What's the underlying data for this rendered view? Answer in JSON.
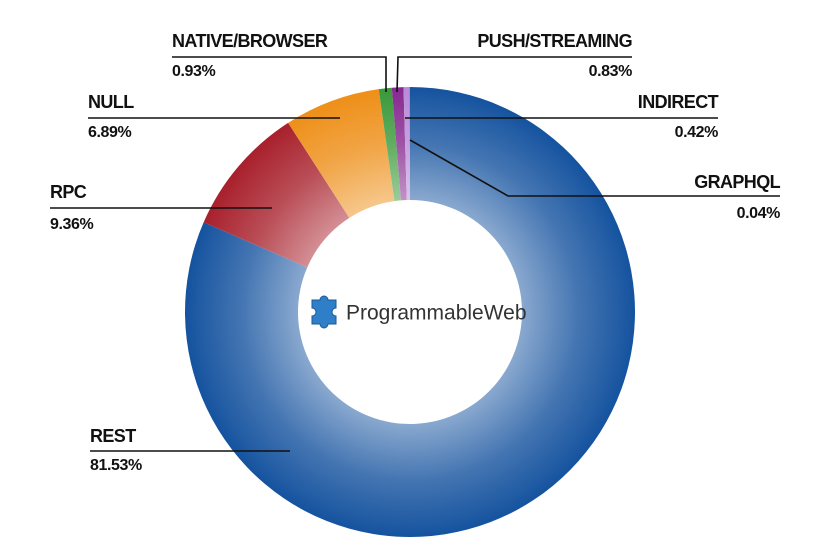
{
  "chart_data": {
    "type": "donut",
    "categories": [
      "REST",
      "RPC",
      "NULL",
      "NATIVE/BROWSER",
      "PUSH/STREAMING",
      "INDIRECT",
      "GRAPHQL"
    ],
    "values": [
      81.53,
      9.36,
      6.89,
      0.93,
      0.83,
      0.42,
      0.04
    ],
    "value_labels": [
      "81.53%",
      "9.36%",
      "6.89%",
      "0.93%",
      "0.83%",
      "0.42%",
      "0.04%"
    ],
    "colors": [
      "#15539f",
      "#a8202c",
      "#ee8f18",
      "#3a983a",
      "#86288f",
      "#b88ad8",
      "#4f8fd8"
    ],
    "logo": "ProgrammableWeb"
  }
}
